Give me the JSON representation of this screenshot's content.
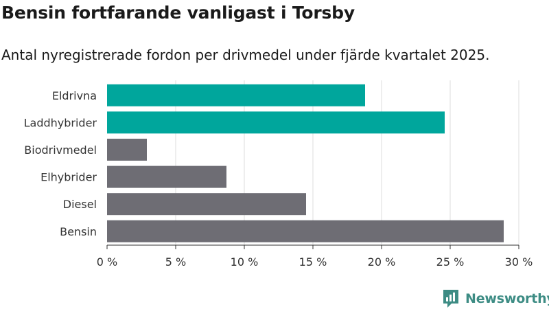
{
  "title": "Bensin fortfarande vanligast i Torsby",
  "subtitle": "Antal nyregistrerade fordon per drivmedel under fjärde kvartalet 2025.",
  "brand": {
    "name": "Newsworthy",
    "icon": "newsworthy-logo-icon"
  },
  "colors": {
    "highlight": "#00a69c",
    "default": "#6e6d74",
    "grid": "#dddddd",
    "axis": "#333333"
  },
  "chart_data": {
    "type": "bar",
    "orientation": "horizontal",
    "categories": [
      "Eldrivna",
      "Laddhybrider",
      "Biodrivmedel",
      "Elhybrider",
      "Diesel",
      "Bensin"
    ],
    "values": [
      18.8,
      24.6,
      2.9,
      8.7,
      14.5,
      28.9
    ],
    "highlighted": [
      true,
      true,
      false,
      false,
      false,
      false
    ],
    "xlim": [
      0,
      30
    ],
    "xticks": [
      0,
      5,
      10,
      15,
      20,
      25,
      30
    ],
    "xtick_labels": [
      "0 %",
      "5 %",
      "10 %",
      "15 %",
      "20 %",
      "25 %",
      "30 %"
    ],
    "grid": true
  }
}
